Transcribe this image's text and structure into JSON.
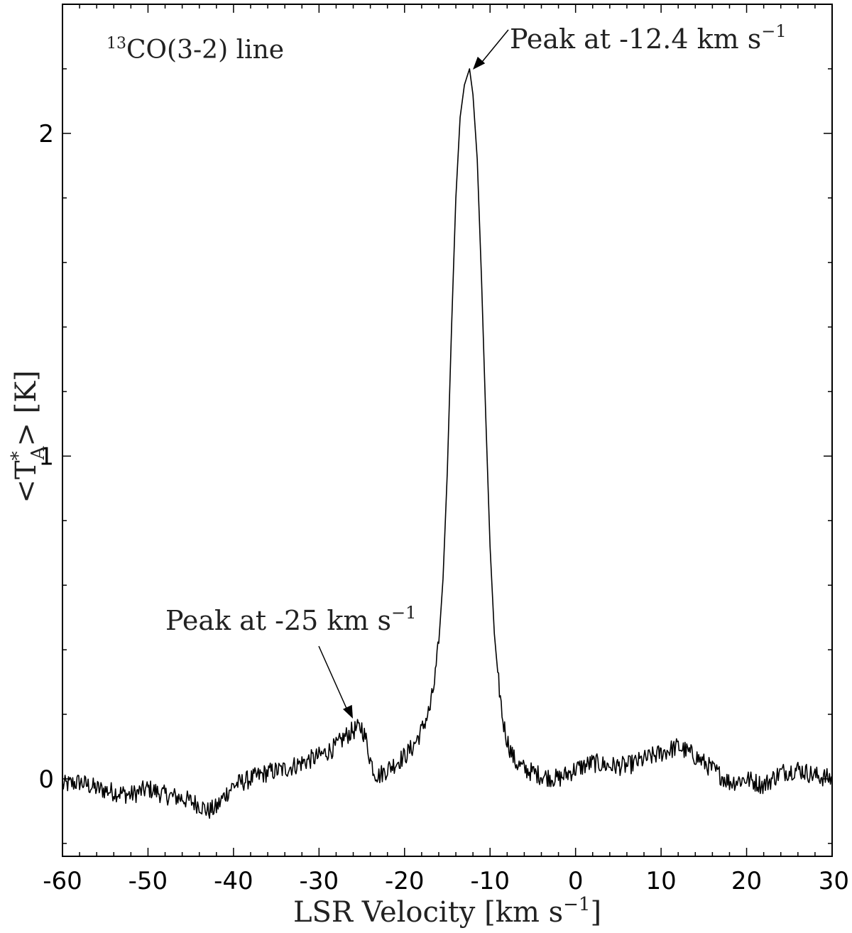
{
  "chart_data": {
    "type": "line",
    "title": "",
    "line_label": {
      "superscript": "13",
      "text": "CO(3-2) line"
    },
    "xlabel": {
      "text": "LSR Velocity [km s",
      "sup": "−1",
      "close": "]"
    },
    "ylabel": {
      "open": "<T",
      "sup": "*",
      "sub": "A",
      "close": "> [K]"
    },
    "xlim": [
      -60,
      30
    ],
    "ylim": [
      -0.24,
      2.4
    ],
    "xticks": [
      -60,
      -50,
      -40,
      -30,
      -20,
      -10,
      0,
      10,
      20,
      30
    ],
    "yticks": [
      0,
      1,
      2
    ],
    "grid": false,
    "line_color": "#000000",
    "series": [
      {
        "x": [
          -60,
          -58,
          -56,
          -54,
          -52,
          -50,
          -48,
          -46,
          -44,
          -43,
          -42,
          -41,
          -40,
          -38,
          -36,
          -34,
          -32,
          -30,
          -28,
          -27,
          -26,
          -25,
          -24.5,
          -24,
          -23.5,
          -23,
          -22,
          -21,
          -20,
          -19,
          -18,
          -17,
          -16.5,
          -16,
          -15.5,
          -15,
          -14.5,
          -14,
          -13.5,
          -13,
          -12.4,
          -12,
          -11.5,
          -11,
          -10.5,
          -10,
          -9.5,
          -9,
          -8.5,
          -8,
          -7.5,
          -7,
          -6,
          -5,
          -4,
          -2,
          0,
          2,
          4,
          6,
          8,
          10,
          12,
          14,
          16,
          18,
          20,
          22,
          24,
          26,
          28,
          30
        ],
        "y": [
          -0.02,
          -0.01,
          -0.03,
          -0.04,
          -0.05,
          -0.03,
          -0.05,
          -0.06,
          -0.08,
          -0.1,
          -0.09,
          -0.05,
          -0.02,
          0.0,
          0.02,
          0.03,
          0.05,
          0.07,
          0.1,
          0.13,
          0.15,
          0.16,
          0.12,
          0.06,
          0.02,
          0.01,
          0.03,
          0.05,
          0.07,
          0.1,
          0.15,
          0.22,
          0.3,
          0.42,
          0.62,
          0.95,
          1.4,
          1.8,
          2.05,
          2.15,
          2.2,
          2.12,
          1.92,
          1.55,
          1.12,
          0.72,
          0.45,
          0.3,
          0.18,
          0.12,
          0.08,
          0.05,
          0.03,
          0.02,
          0.01,
          0.0,
          0.03,
          0.05,
          0.04,
          0.04,
          0.06,
          0.08,
          0.1,
          0.07,
          0.03,
          -0.01,
          0.0,
          -0.02,
          0.02,
          0.03,
          0.01,
          0.0
        ],
        "noise": 0.03
      }
    ],
    "annotations": [
      {
        "text": "Peak at -12.4 km s",
        "sup": "−1",
        "x": -12.4,
        "y": 2.2
      },
      {
        "text": "Peak at -25 km s",
        "sup": "−1",
        "x": -26,
        "y": 0.19
      }
    ]
  }
}
